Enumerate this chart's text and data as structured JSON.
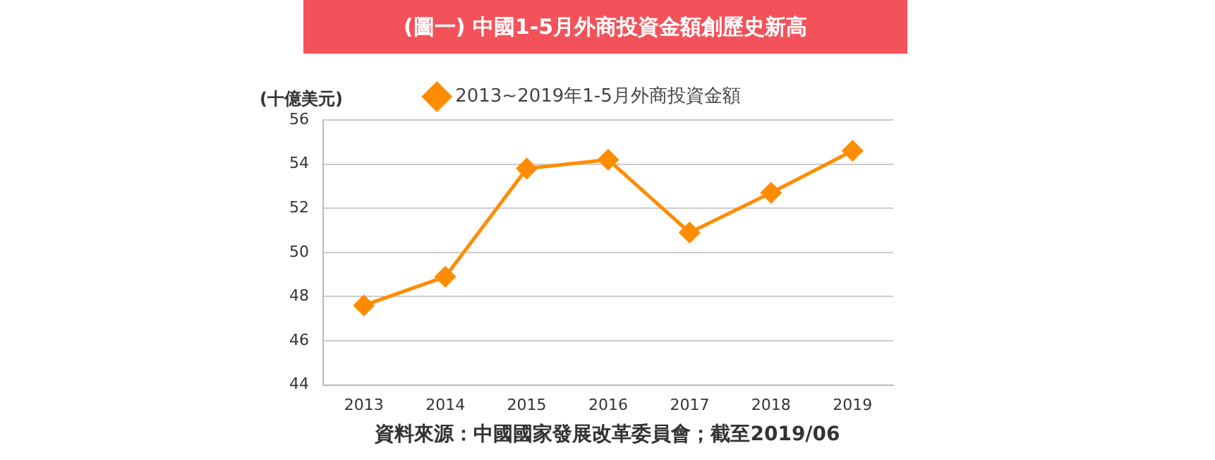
{
  "chart_data": {
    "type": "line",
    "title": "(圖一) 中國1-5月外商投資金額創歷史新高",
    "ylabel": "(十億美元)",
    "categories": [
      "2013",
      "2014",
      "2015",
      "2016",
      "2017",
      "2018",
      "2019"
    ],
    "series": [
      {
        "name": "2013~2019年1-5月外商投資金額",
        "color": "#ff8c00",
        "values": [
          47.6,
          48.9,
          53.8,
          54.2,
          50.9,
          52.7,
          54.6
        ]
      }
    ],
    "ylim": [
      44,
      56
    ],
    "yticks": [
      44,
      46,
      48,
      50,
      52,
      54,
      56
    ],
    "grid": "y",
    "legend": "top",
    "marker": "diamond",
    "line_style": "solid",
    "annotations": [
      "資料來源：中國國家發展改革委員會；截至2019/06"
    ]
  }
}
